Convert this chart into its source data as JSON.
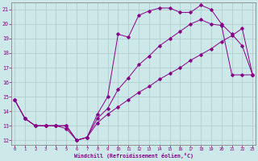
{
  "xlabel": "Windchill (Refroidissement éolien,°C)",
  "bg_color": "#cce8e8",
  "line_color": "#880088",
  "grid_color": "#aacccc",
  "xlim": [
    -0.3,
    23.3
  ],
  "ylim": [
    11.7,
    21.5
  ],
  "xticks": [
    0,
    1,
    2,
    3,
    4,
    5,
    6,
    7,
    8,
    9,
    10,
    11,
    12,
    13,
    14,
    15,
    16,
    17,
    18,
    19,
    20,
    21,
    22,
    23
  ],
  "yticks": [
    12,
    13,
    14,
    15,
    16,
    17,
    18,
    19,
    20,
    21
  ],
  "line1_x": [
    0,
    1,
    2,
    3,
    4,
    5,
    6,
    7,
    8,
    9,
    10,
    11,
    12,
    13,
    14,
    15,
    16,
    17,
    18,
    19,
    20,
    21,
    22,
    23
  ],
  "line1_y": [
    14.8,
    13.5,
    13.0,
    13.0,
    13.0,
    12.8,
    12.0,
    12.2,
    13.8,
    15.0,
    19.3,
    19.1,
    20.6,
    20.9,
    21.1,
    21.1,
    20.8,
    20.8,
    21.3,
    21.0,
    20.0,
    19.3,
    18.5,
    16.5
  ],
  "line2_x": [
    0,
    1,
    2,
    3,
    4,
    5,
    6,
    7,
    8,
    9,
    10,
    11,
    12,
    13,
    14,
    15,
    16,
    17,
    18,
    19,
    20,
    21,
    22,
    23
  ],
  "line2_y": [
    14.8,
    13.5,
    13.0,
    13.0,
    13.0,
    13.0,
    12.0,
    12.2,
    13.5,
    14.2,
    15.5,
    16.3,
    17.2,
    17.8,
    18.5,
    19.0,
    19.5,
    20.0,
    20.3,
    20.0,
    19.9,
    16.5,
    16.5,
    16.5
  ],
  "line3_x": [
    0,
    1,
    2,
    3,
    4,
    5,
    6,
    7,
    8,
    9,
    10,
    11,
    12,
    13,
    14,
    15,
    16,
    17,
    18,
    19,
    20,
    21,
    22,
    23
  ],
  "line3_y": [
    14.8,
    13.5,
    13.0,
    13.0,
    13.0,
    13.0,
    12.0,
    12.2,
    13.2,
    13.8,
    14.3,
    14.8,
    15.3,
    15.7,
    16.2,
    16.6,
    17.0,
    17.5,
    17.9,
    18.3,
    18.8,
    19.2,
    19.7,
    16.5
  ]
}
